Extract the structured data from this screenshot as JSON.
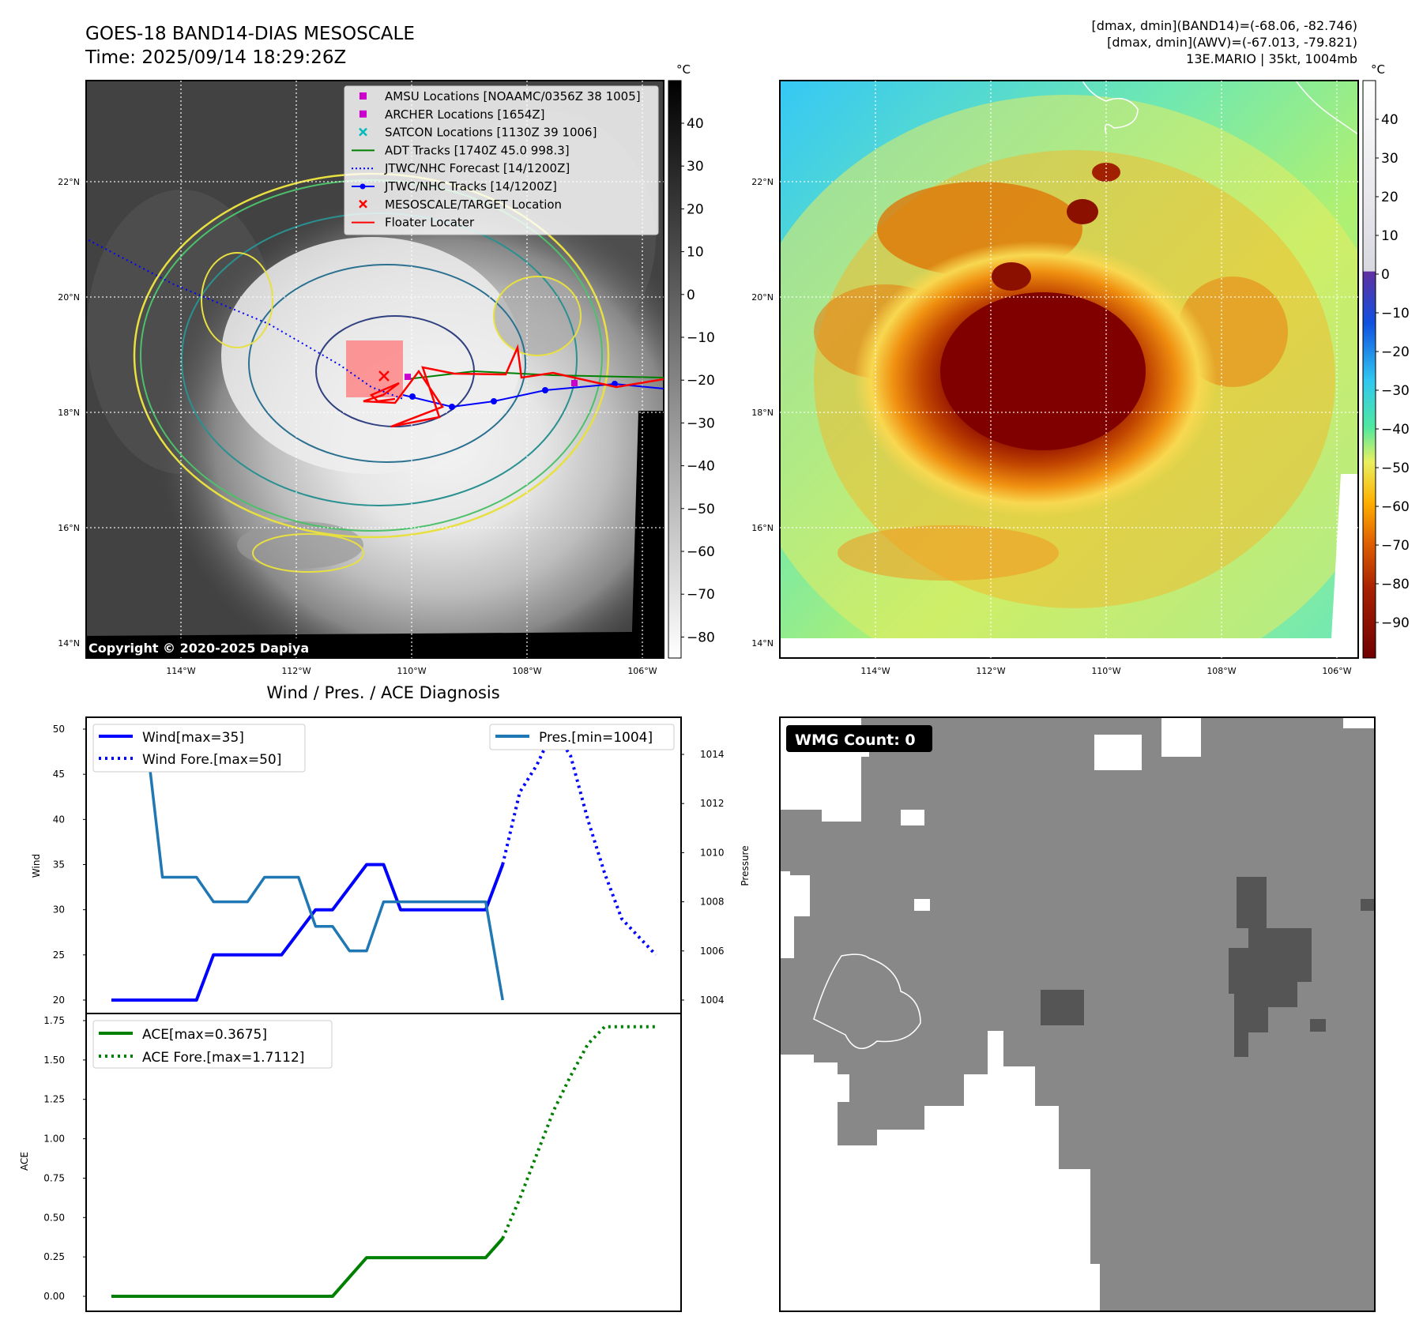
{
  "header": {
    "title_line1": "GOES-18 BAND14-DIAS MESOSCALE",
    "title_line2": "Time: 2025/09/14 18:29:26Z",
    "info_line1": "[dmax, dmin](BAND14)=(-68.06, -82.746)",
    "info_line2": "[dmax, dmin](AWV)=(-67.013, -79.821)",
    "info_line3": "13E.MARIO | 35kt, 1004mb"
  },
  "map": {
    "lat_labels": [
      "22°N",
      "20°N",
      "18°N",
      "16°N",
      "14°N"
    ],
    "lon_labels": [
      "114°W",
      "112°W",
      "110°W",
      "108°W",
      "106°W"
    ],
    "copyright": "Copyright © 2020-2025 Dapiya",
    "legend": [
      {
        "label": "AMSU Locations [NOAAMC/0356Z 38 1005]",
        "color": "#cc00cc",
        "marker": "square"
      },
      {
        "label": "ARCHER Locations [1654Z]",
        "color": "#cc00cc",
        "marker": "square"
      },
      {
        "label": "SATCON Locations [1130Z 39 1006]",
        "color": "#00bbbb",
        "marker": "x"
      },
      {
        "label": "ADT Tracks [1740Z 45.0 998.3]",
        "color": "#008000",
        "marker": "line"
      },
      {
        "label": "JTWC/NHC Forecast [14/1200Z]",
        "color": "#0000ff",
        "marker": "dotted"
      },
      {
        "label": "JTWC/NHC Tracks [14/1200Z]",
        "color": "#0000ff",
        "marker": "line-dot"
      },
      {
        "label": "MESOSCALE/TARGET Location",
        "color": "#ff0000",
        "marker": "x"
      },
      {
        "label": "Floater Locater",
        "color": "#ff0000",
        "marker": "line"
      }
    ],
    "colorbar_unit": "°C",
    "ir_colorbar_ticks": [
      "40",
      "30",
      "20",
      "10",
      "0",
      "−10",
      "−20",
      "−30",
      "−40",
      "−50",
      "−60",
      "−70",
      "−80"
    ],
    "awv_colorbar_ticks": [
      "40",
      "30",
      "20",
      "10",
      "0",
      "−10",
      "−20",
      "−30",
      "−40",
      "−50",
      "−60",
      "−70",
      "−80",
      "−90"
    ]
  },
  "chart_data": [
    {
      "type": "line",
      "title": "Wind / Pres. / ACE Diagnosis",
      "ylabel": "Wind",
      "ylim": [
        20,
        50
      ],
      "y2label": "Pressure",
      "y2lim": [
        1004,
        1014
      ],
      "yticks": [
        "50",
        "45",
        "40",
        "35",
        "30",
        "25",
        "20"
      ],
      "y2ticks": [
        "1014",
        "1012",
        "1010",
        "1008",
        "1006",
        "1004"
      ],
      "series": [
        {
          "name": "Wind[max=35]",
          "color": "#0000ff",
          "style": "solid",
          "axis": "left",
          "x": [
            0,
            5,
            6,
            10,
            12,
            13,
            15,
            16,
            17,
            22,
            23
          ],
          "y": [
            20,
            20,
            25,
            25,
            30,
            30,
            35,
            35,
            30,
            30,
            35
          ]
        },
        {
          "name": "Wind Fore.[max=50]",
          "color": "#0000ff",
          "style": "dotted",
          "axis": "left",
          "x": [
            23,
            24,
            25,
            26,
            27,
            28,
            29,
            30,
            31,
            32
          ],
          "y": [
            35,
            43,
            46,
            50,
            47,
            40,
            34,
            29,
            27,
            25
          ]
        },
        {
          "name": "Pres.[min=1004]",
          "color": "#1f77b4",
          "style": "solid",
          "axis": "right",
          "x": [
            0,
            2,
            3,
            5,
            6,
            8,
            9,
            11,
            12,
            13,
            14,
            15,
            16,
            17,
            22,
            23
          ],
          "y": [
            1015,
            1015,
            1009.0,
            1009.0,
            1008.0,
            1008.0,
            1009.0,
            1009.0,
            1007.0,
            1007.0,
            1006.0,
            1006.0,
            1008.0,
            1008.0,
            1008.0,
            1004
          ]
        }
      ]
    },
    {
      "type": "line",
      "ylabel": "ACE",
      "ylim": [
        0,
        1.75
      ],
      "yticks": [
        "1.75",
        "1.50",
        "1.25",
        "1.00",
        "0.75",
        "0.50",
        "0.25",
        "0.00"
      ],
      "series": [
        {
          "name": "ACE[max=0.3675]",
          "color": "#008000",
          "style": "solid",
          "x": [
            0,
            13,
            15,
            22,
            23
          ],
          "y": [
            0,
            0,
            0.245,
            0.245,
            0.3675
          ]
        },
        {
          "name": "ACE Fore.[max=1.7112]",
          "color": "#008000",
          "style": "dotted",
          "x": [
            23,
            24,
            25,
            26,
            27,
            28,
            29,
            30,
            31,
            32
          ],
          "y": [
            0.3675,
            0.62,
            0.9,
            1.18,
            1.4,
            1.6,
            1.7112,
            1.7112,
            1.7112,
            1.7112
          ]
        }
      ]
    }
  ],
  "wmg": {
    "count_label": "WMG Count: 0"
  }
}
